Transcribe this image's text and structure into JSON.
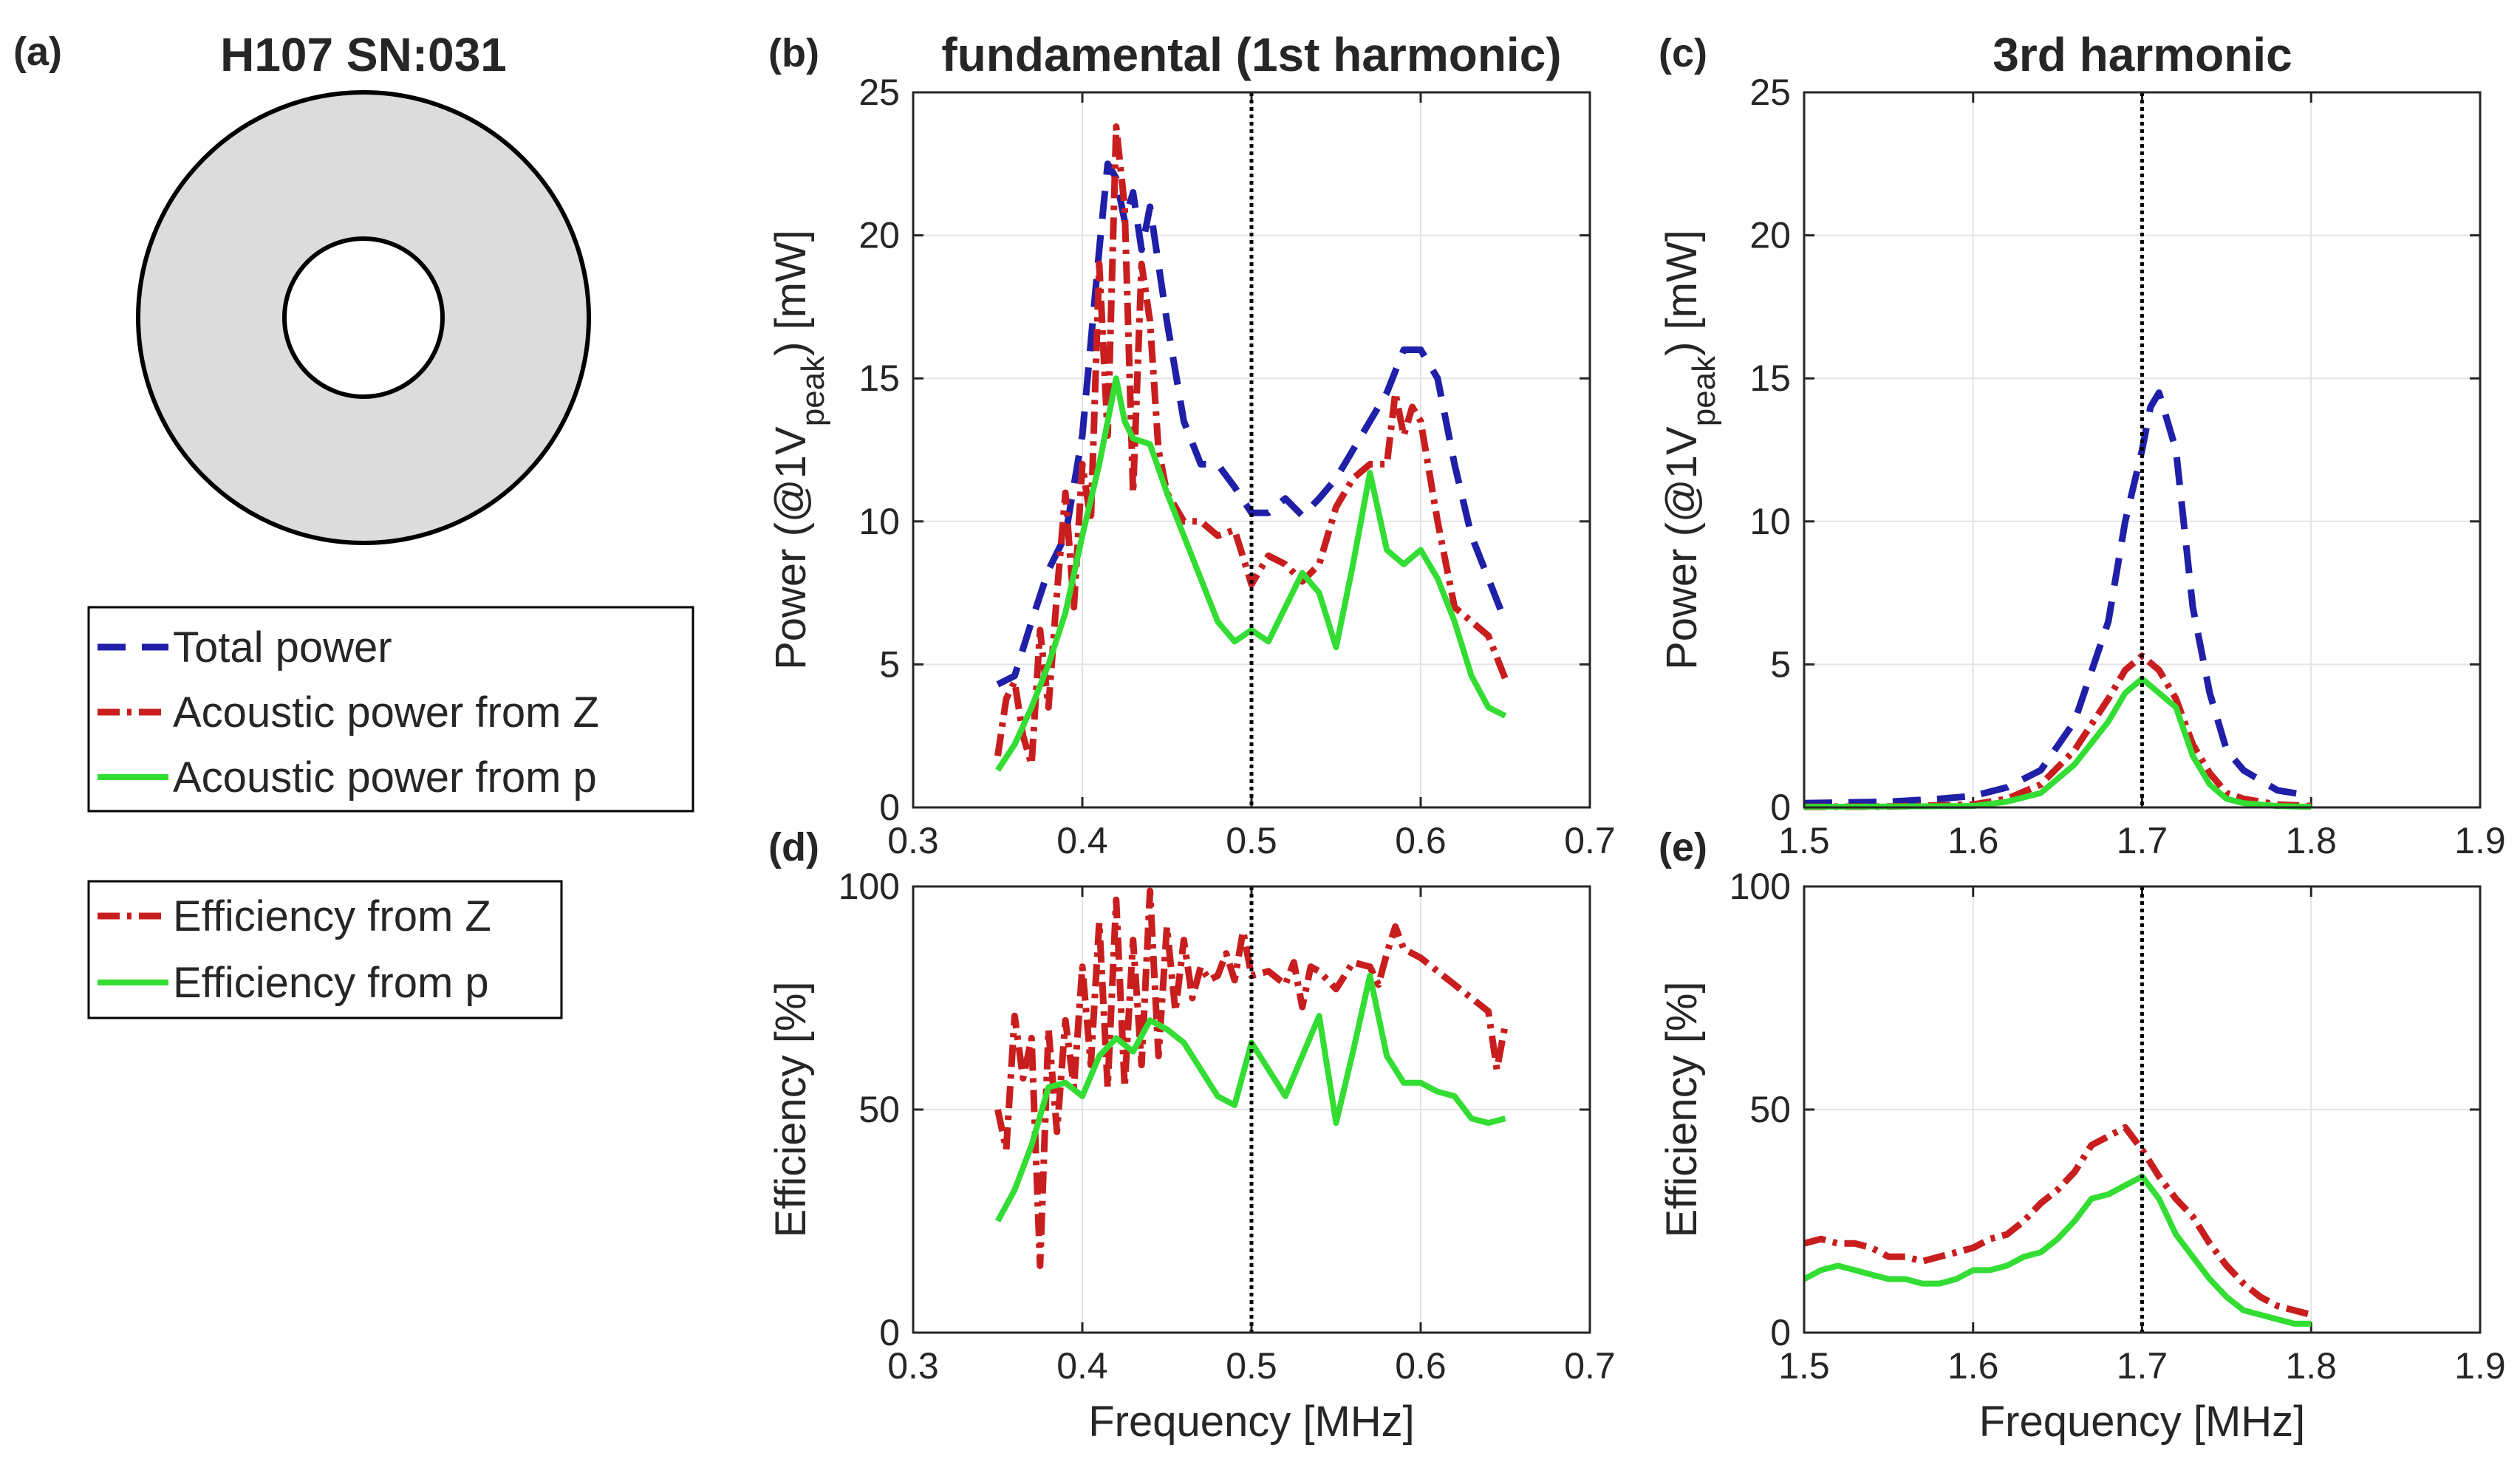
{
  "panel_a": {
    "label": "(a)",
    "title": "H107 SN:031",
    "ring_color": "#dcdcdc",
    "legend_power": [
      {
        "key": "total",
        "text": "Total power"
      },
      {
        "key": "acZ",
        "text": "Acoustic power from Z"
      },
      {
        "key": "acP",
        "text": "Acoustic power from p"
      }
    ],
    "legend_efficiency": [
      {
        "key": "effZ",
        "text": "Efficiency from Z"
      },
      {
        "key": "effP",
        "text": "Efficiency from p"
      }
    ]
  },
  "styles": {
    "total": {
      "color": "#1f1fa8",
      "dash": "38 22",
      "width": 9
    },
    "acZ": {
      "color": "#c81e1e",
      "dash": "30 10 6 10",
      "width": 9
    },
    "acP": {
      "color": "#33dd33",
      "dash": "",
      "width": 8
    },
    "effZ": {
      "color": "#c81e1e",
      "dash": "30 10 6 10",
      "width": 9
    },
    "effP": {
      "color": "#33dd33",
      "dash": "",
      "width": 8
    },
    "marker_color": "#000000"
  },
  "chart_data": [
    {
      "id": "b",
      "type": "line",
      "label": "(b)",
      "title": "fundamental (1st harmonic)",
      "xlabel": "",
      "ylabel": "Power (@1V",
      "ylabel_sub": "peak",
      "ylabel_end": ") [mW]",
      "xlim": [
        0.3,
        0.7
      ],
      "ylim": [
        0,
        25
      ],
      "xticks": [
        "0.3",
        "0.4",
        "0.5",
        "0.6",
        "0.7"
      ],
      "yticks": [
        "0",
        "5",
        "10",
        "15",
        "20",
        "25"
      ],
      "grid": true,
      "vline": 0.5,
      "series": [
        {
          "key": "total",
          "x": [
            0.35,
            0.36,
            0.37,
            0.38,
            0.39,
            0.4,
            0.41,
            0.415,
            0.42,
            0.425,
            0.43,
            0.435,
            0.44,
            0.45,
            0.46,
            0.47,
            0.48,
            0.49,
            0.5,
            0.51,
            0.52,
            0.53,
            0.54,
            0.55,
            0.56,
            0.57,
            0.58,
            0.59,
            0.6,
            0.61,
            0.62,
            0.63,
            0.64,
            0.65
          ],
          "y": [
            4.3,
            4.6,
            6.5,
            8.3,
            9.5,
            13,
            19.5,
            22.5,
            22,
            20.5,
            21.5,
            19.5,
            21,
            17,
            13.5,
            12,
            12,
            11.2,
            10.3,
            10.3,
            10.8,
            10.2,
            10.8,
            11.5,
            12.5,
            13.5,
            14.5,
            16,
            16,
            15,
            12,
            9.5,
            8,
            6.5
          ]
        },
        {
          "key": "acZ",
          "x": [
            0.35,
            0.355,
            0.36,
            0.365,
            0.37,
            0.375,
            0.38,
            0.385,
            0.39,
            0.395,
            0.4,
            0.405,
            0.41,
            0.415,
            0.42,
            0.425,
            0.43,
            0.435,
            0.44,
            0.445,
            0.45,
            0.46,
            0.47,
            0.48,
            0.49,
            0.5,
            0.51,
            0.52,
            0.53,
            0.54,
            0.55,
            0.56,
            0.57,
            0.58,
            0.585,
            0.59,
            0.595,
            0.6,
            0.61,
            0.62,
            0.63,
            0.64,
            0.65
          ],
          "y": [
            1.8,
            3.8,
            4.4,
            2.5,
            1.5,
            6.2,
            3.5,
            7.5,
            11,
            7,
            12,
            10,
            19,
            13,
            23.8,
            21,
            11,
            19,
            17,
            12.5,
            11,
            10,
            10,
            9.5,
            9.7,
            7.8,
            8.8,
            8.5,
            7.9,
            8.5,
            10.5,
            11.5,
            12,
            12,
            14.5,
            13,
            14,
            13.5,
            10,
            7,
            6.5,
            6,
            4.5
          ]
        },
        {
          "key": "acP",
          "x": [
            0.35,
            0.36,
            0.37,
            0.38,
            0.39,
            0.4,
            0.41,
            0.42,
            0.425,
            0.43,
            0.44,
            0.45,
            0.46,
            0.47,
            0.48,
            0.49,
            0.5,
            0.51,
            0.52,
            0.53,
            0.54,
            0.55,
            0.56,
            0.57,
            0.58,
            0.59,
            0.6,
            0.61,
            0.62,
            0.63,
            0.64,
            0.65
          ],
          "y": [
            1.3,
            2.2,
            3.5,
            5,
            6.8,
            9.5,
            12,
            15,
            13.5,
            12.9,
            12.7,
            11,
            9.5,
            8,
            6.5,
            5.8,
            6.2,
            5.8,
            7,
            8.2,
            7.5,
            5.6,
            8.5,
            11.7,
            9,
            8.5,
            9,
            8,
            6.5,
            4.6,
            3.5,
            3.2
          ]
        }
      ]
    },
    {
      "id": "c",
      "type": "line",
      "label": "(c)",
      "title": "3rd harmonic",
      "xlabel": "",
      "ylabel": "Power (@1V",
      "ylabel_sub": "peak",
      "ylabel_end": ") [mW]",
      "xlim": [
        1.5,
        1.9
      ],
      "ylim": [
        0,
        25
      ],
      "xticks": [
        "1.5",
        "1.6",
        "1.7",
        "1.8",
        "1.9"
      ],
      "yticks": [
        "0",
        "5",
        "10",
        "15",
        "20",
        "25"
      ],
      "grid": true,
      "vline": 1.7,
      "series": [
        {
          "key": "total",
          "x": [
            1.5,
            1.55,
            1.58,
            1.6,
            1.62,
            1.64,
            1.66,
            1.68,
            1.69,
            1.7,
            1.705,
            1.71,
            1.72,
            1.73,
            1.74,
            1.75,
            1.76,
            1.78,
            1.8
          ],
          "y": [
            0.15,
            0.2,
            0.3,
            0.4,
            0.7,
            1.3,
            3,
            6.5,
            10,
            12.5,
            14,
            14.5,
            12.5,
            7,
            4,
            2,
            1.3,
            0.6,
            0.4
          ]
        },
        {
          "key": "acZ",
          "x": [
            1.5,
            1.55,
            1.6,
            1.62,
            1.64,
            1.66,
            1.68,
            1.69,
            1.7,
            1.71,
            1.72,
            1.73,
            1.74,
            1.75,
            1.76,
            1.78,
            1.8
          ],
          "y": [
            0.02,
            0.03,
            0.1,
            0.3,
            0.8,
            2,
            3.8,
            4.8,
            5.3,
            4.8,
            3.8,
            2.2,
            1.2,
            0.5,
            0.3,
            0.1,
            0.05
          ]
        },
        {
          "key": "acP",
          "x": [
            1.5,
            1.55,
            1.6,
            1.62,
            1.64,
            1.66,
            1.68,
            1.69,
            1.7,
            1.71,
            1.72,
            1.73,
            1.74,
            1.75,
            1.76,
            1.78,
            1.8
          ],
          "y": [
            0.02,
            0.03,
            0.05,
            0.2,
            0.5,
            1.5,
            3,
            4,
            4.5,
            4,
            3.5,
            1.8,
            0.8,
            0.3,
            0.15,
            0.05,
            0.02
          ]
        }
      ]
    },
    {
      "id": "d",
      "type": "line",
      "label": "(d)",
      "title": "",
      "xlabel": "Frequency [MHz]",
      "ylabel": "Efficiency [%]",
      "ylabel_sub": "",
      "ylabel_end": "",
      "xlim": [
        0.3,
        0.7
      ],
      "ylim": [
        0,
        100
      ],
      "xticks": [
        "0.3",
        "0.4",
        "0.5",
        "0.6",
        "0.7"
      ],
      "yticks": [
        "0",
        "50",
        "100"
      ],
      "grid": true,
      "vline": 0.5,
      "series": [
        {
          "key": "effZ",
          "x": [
            0.35,
            0.355,
            0.36,
            0.365,
            0.37,
            0.375,
            0.38,
            0.385,
            0.39,
            0.395,
            0.4,
            0.405,
            0.41,
            0.415,
            0.42,
            0.425,
            0.43,
            0.435,
            0.44,
            0.445,
            0.45,
            0.455,
            0.46,
            0.465,
            0.47,
            0.475,
            0.48,
            0.485,
            0.49,
            0.495,
            0.5,
            0.51,
            0.52,
            0.525,
            0.53,
            0.535,
            0.54,
            0.55,
            0.56,
            0.57,
            0.575,
            0.58,
            0.585,
            0.59,
            0.6,
            0.61,
            0.62,
            0.63,
            0.64,
            0.645,
            0.65
          ],
          "y": [
            50,
            41,
            71,
            57,
            66,
            15,
            68,
            45,
            70,
            55,
            82,
            60,
            92,
            55,
            97,
            55,
            88,
            60,
            99,
            62,
            91,
            72,
            88,
            75,
            82,
            79,
            80,
            85,
            79,
            90,
            80,
            81,
            78,
            83,
            73,
            82,
            81,
            77,
            83,
            82,
            78,
            85,
            91,
            86,
            84,
            81,
            78,
            75,
            72,
            59,
            69
          ]
        },
        {
          "key": "effP",
          "x": [
            0.35,
            0.36,
            0.37,
            0.38,
            0.39,
            0.4,
            0.41,
            0.42,
            0.43,
            0.44,
            0.45,
            0.46,
            0.47,
            0.48,
            0.49,
            0.5,
            0.51,
            0.52,
            0.53,
            0.54,
            0.55,
            0.56,
            0.57,
            0.58,
            0.59,
            0.6,
            0.61,
            0.62,
            0.63,
            0.64,
            0.65
          ],
          "y": [
            25,
            32,
            42,
            55,
            56,
            53,
            62,
            66,
            63,
            70,
            68,
            65,
            59,
            53,
            51,
            65,
            59,
            53,
            62,
            71,
            47,
            63,
            80,
            62,
            56,
            56,
            54,
            53,
            48,
            47,
            48
          ]
        }
      ]
    },
    {
      "id": "e",
      "type": "line",
      "label": "(e)",
      "title": "",
      "xlabel": "Frequency [MHz]",
      "ylabel": "Efficiency [%]",
      "ylabel_sub": "",
      "ylabel_end": "",
      "xlim": [
        1.5,
        1.9
      ],
      "ylim": [
        0,
        100
      ],
      "xticks": [
        "1.5",
        "1.6",
        "1.7",
        "1.8",
        "1.9"
      ],
      "yticks": [
        "0",
        "50",
        "100"
      ],
      "grid": true,
      "vline": 1.7,
      "series": [
        {
          "key": "effZ",
          "x": [
            1.5,
            1.51,
            1.52,
            1.53,
            1.54,
            1.55,
            1.56,
            1.57,
            1.58,
            1.59,
            1.6,
            1.61,
            1.62,
            1.63,
            1.64,
            1.65,
            1.66,
            1.67,
            1.68,
            1.69,
            1.7,
            1.71,
            1.72,
            1.73,
            1.74,
            1.75,
            1.76,
            1.77,
            1.78,
            1.79,
            1.8
          ],
          "y": [
            20,
            21,
            20,
            20,
            19,
            17,
            17,
            16,
            17,
            18,
            19,
            21,
            22,
            25,
            29,
            32,
            36,
            42,
            44,
            46,
            41,
            35,
            30,
            26,
            20,
            15,
            11,
            8,
            6,
            5,
            4
          ]
        },
        {
          "key": "effP",
          "x": [
            1.5,
            1.51,
            1.52,
            1.53,
            1.54,
            1.55,
            1.56,
            1.57,
            1.58,
            1.59,
            1.6,
            1.61,
            1.62,
            1.63,
            1.64,
            1.65,
            1.66,
            1.67,
            1.68,
            1.69,
            1.7,
            1.71,
            1.72,
            1.73,
            1.74,
            1.75,
            1.76,
            1.77,
            1.78,
            1.79,
            1.8
          ],
          "y": [
            12,
            14,
            15,
            14,
            13,
            12,
            12,
            11,
            11,
            12,
            14,
            14,
            15,
            17,
            18,
            21,
            25,
            30,
            31,
            33,
            35,
            30,
            22,
            17,
            12,
            8,
            5,
            4,
            3,
            2,
            2
          ]
        }
      ]
    }
  ]
}
